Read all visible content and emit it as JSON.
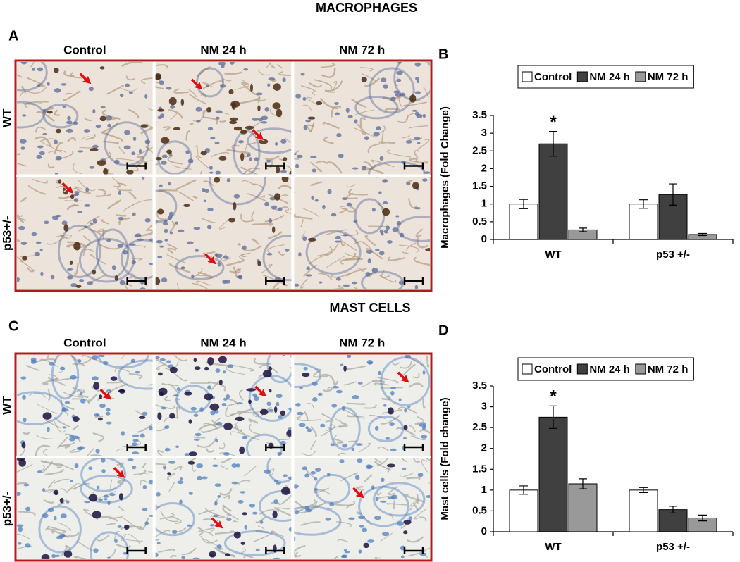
{
  "figure": {
    "panels": [
      {
        "letter": "A",
        "heading": "MACROPHAGES",
        "columns": [
          "Control",
          "NM 24 h",
          "NM 72 h"
        ],
        "rows": [
          "WT",
          "p53+/-"
        ]
      },
      {
        "letter": "C",
        "heading": "MAST CELLS",
        "columns": [
          "Control",
          "NM 24 h",
          "NM 72 h"
        ],
        "rows": [
          "WT",
          "p53+/-"
        ]
      }
    ]
  },
  "chart_data": [
    {
      "type": "bar",
      "panel": "B",
      "ylabel": "Macrophages (Fold Change)",
      "categories": [
        "WT",
        "p53 +/-"
      ],
      "series": [
        {
          "name": "Control",
          "color": "#ffffff",
          "values": [
            1,
            1
          ],
          "errors": [
            0.13,
            0.12
          ]
        },
        {
          "name": "NM 24 h",
          "color": "#404040",
          "values": [
            2.7,
            1.27
          ],
          "errors": [
            0.35,
            0.3
          ]
        },
        {
          "name": "NM 72 h",
          "color": "#999999",
          "values": [
            0.27,
            0.14
          ],
          "errors": [
            0.05,
            0.03
          ]
        }
      ],
      "ylim": [
        0,
        3.5
      ],
      "yticks": [
        0,
        0.5,
        1,
        1.5,
        2,
        2.5,
        3,
        3.5
      ],
      "legend": "top",
      "annotations": [
        {
          "text": "*",
          "category": "WT",
          "series": "NM 24 h"
        }
      ]
    },
    {
      "type": "bar",
      "panel": "D",
      "ylabel": "Mast cells (Fold change)",
      "categories": [
        "WT",
        "p53 +/-"
      ],
      "series": [
        {
          "name": "Control",
          "color": "#ffffff",
          "values": [
            1,
            1
          ],
          "errors": [
            0.1,
            0.06
          ]
        },
        {
          "name": "NM 24 h",
          "color": "#404040",
          "values": [
            2.75,
            0.53
          ],
          "errors": [
            0.27,
            0.08
          ]
        },
        {
          "name": "NM 72 h",
          "color": "#999999",
          "values": [
            1.15,
            0.33
          ],
          "errors": [
            0.12,
            0.07
          ]
        }
      ],
      "ylim": [
        0,
        3.5
      ],
      "yticks": [
        0,
        0.5,
        1,
        1.5,
        2,
        2.5,
        3,
        3.5
      ],
      "legend": "top",
      "annotations": [
        {
          "text": "*",
          "category": "WT",
          "series": "NM 24 h"
        }
      ]
    }
  ]
}
